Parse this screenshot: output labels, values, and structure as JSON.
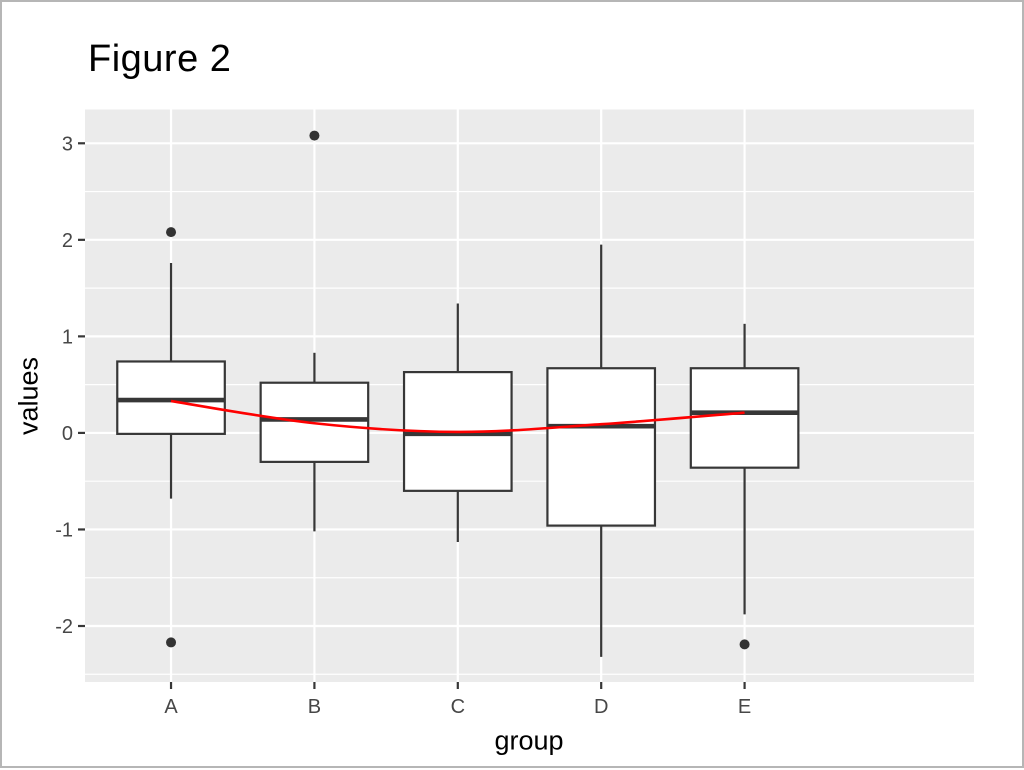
{
  "page": {
    "background": "#ffffff",
    "border_color": "#b6b6b6"
  },
  "chart_data": {
    "type": "boxplot",
    "title": "Figure 2",
    "xlabel": "group",
    "ylabel": "values",
    "categories": [
      "A",
      "B",
      "C",
      "D",
      "E"
    ],
    "ylim": [
      -2.58,
      3.35
    ],
    "y_ticks": [
      {
        "label": "3",
        "value": 3
      },
      {
        "label": "2",
        "value": 2
      },
      {
        "label": "1",
        "value": 1
      },
      {
        "label": "0",
        "value": 0
      },
      {
        "label": "-1",
        "value": -1
      },
      {
        "label": "-2",
        "value": -2
      }
    ],
    "y_minor_gridlines": [
      2.5,
      1.5,
      0.5,
      -0.5,
      -1.5,
      -2.5
    ],
    "grid": "on",
    "legend": "none",
    "boxes": [
      {
        "group": "A",
        "whisker_low": -0.68,
        "q1": -0.01,
        "median": 0.34,
        "q3": 0.74,
        "whisker_high": 1.76,
        "outliers": [
          2.08,
          -2.17
        ]
      },
      {
        "group": "B",
        "whisker_low": -1.02,
        "q1": -0.3,
        "median": 0.14,
        "q3": 0.52,
        "whisker_high": 0.83,
        "outliers": [
          3.08
        ]
      },
      {
        "group": "C",
        "whisker_low": -1.13,
        "q1": -0.6,
        "median": -0.01,
        "q3": 0.63,
        "whisker_high": 1.34,
        "outliers": []
      },
      {
        "group": "D",
        "whisker_low": -2.32,
        "q1": -0.96,
        "median": 0.07,
        "q3": 0.67,
        "whisker_high": 1.95,
        "outliers": []
      },
      {
        "group": "E",
        "whisker_low": -1.88,
        "q1": -0.36,
        "median": 0.21,
        "q3": 0.67,
        "whisker_high": 1.13,
        "outliers": [
          -2.19
        ]
      }
    ],
    "smooth_line": {
      "name": "trend-line",
      "color": "#fe0000",
      "values": [
        0.33,
        0.1,
        0.01,
        0.09,
        0.21
      ]
    },
    "style": {
      "panel_background": "#ebebeb",
      "gridline_color": "#ffffff",
      "box_fill": "#ffffff",
      "box_stroke": "#373737",
      "outlier_color": "#333333",
      "tick_label_color": "#474747",
      "axis_title_color": "#000000",
      "title_color": "#000000"
    }
  }
}
